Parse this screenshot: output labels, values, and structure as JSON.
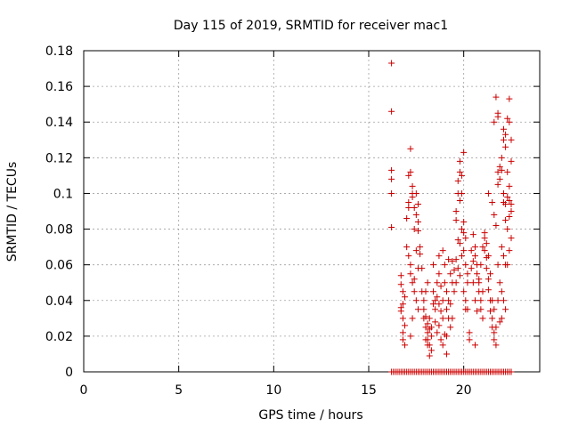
{
  "chart_data": {
    "type": "scatter",
    "title": "Day 115 of 2019, SRMTID for receiver mac1",
    "xlabel": "GPS time / hours",
    "ylabel": "SRMTID / TECUs",
    "xlim": [
      0,
      24
    ],
    "ylim": [
      0,
      0.18
    ],
    "grid": true,
    "marker": "+",
    "colors": {
      "points": "#cc0000",
      "grid": "#a0a0a0",
      "axis": "#000000"
    },
    "x_ticks": [
      {
        "value": 0,
        "label": "0"
      },
      {
        "value": 5,
        "label": "5"
      },
      {
        "value": 10,
        "label": "10"
      },
      {
        "value": 15,
        "label": "15"
      },
      {
        "value": 20,
        "label": "20"
      }
    ],
    "y_ticks": [
      {
        "value": 0,
        "label": "0"
      },
      {
        "value": 0.02,
        "label": "0.02"
      },
      {
        "value": 0.04,
        "label": "0.04"
      },
      {
        "value": 0.06,
        "label": "0.06"
      },
      {
        "value": 0.08,
        "label": "0.08"
      },
      {
        "value": 0.1,
        "label": "0.1"
      },
      {
        "value": 0.12,
        "label": "0.12"
      },
      {
        "value": 0.14,
        "label": "0.14"
      },
      {
        "value": 0.16,
        "label": "0.16"
      },
      {
        "value": 0.18,
        "label": "0.18"
      }
    ],
    "series": [
      {
        "values": [
          [
            16.2,
            0.173
          ],
          [
            16.2,
            0.146
          ],
          [
            16.2,
            0.113
          ],
          [
            16.2,
            0.108
          ],
          [
            16.2,
            0.1
          ],
          [
            16.2,
            0.081
          ],
          [
            16.7,
            0.054
          ],
          [
            16.7,
            0.049
          ],
          [
            16.8,
            0.045
          ],
          [
            16.8,
            0.038
          ],
          [
            16.7,
            0.034
          ],
          [
            16.8,
            0.03
          ],
          [
            16.8,
            0.022
          ],
          [
            16.8,
            0.018
          ],
          [
            16.9,
            0.015
          ],
          [
            16.9,
            0.026
          ],
          [
            16.9,
            0.042
          ],
          [
            16.7,
            0.036
          ],
          [
            17.0,
            0.07
          ],
          [
            17.0,
            0.086
          ],
          [
            17.1,
            0.095
          ],
          [
            17.1,
            0.11
          ],
          [
            17.2,
            0.112
          ],
          [
            17.2,
            0.125
          ],
          [
            17.3,
            0.1
          ],
          [
            17.3,
            0.098
          ],
          [
            17.4,
            0.092
          ],
          [
            17.4,
            0.08
          ],
          [
            17.5,
            0.088
          ],
          [
            17.6,
            0.084
          ],
          [
            17.6,
            0.079
          ],
          [
            17.1,
            0.092
          ],
          [
            17.3,
            0.104
          ],
          [
            17.5,
            0.1
          ],
          [
            17.6,
            0.094
          ],
          [
            17.1,
            0.065
          ],
          [
            17.2,
            0.06
          ],
          [
            17.2,
            0.055
          ],
          [
            17.3,
            0.05
          ],
          [
            17.4,
            0.045
          ],
          [
            17.5,
            0.04
          ],
          [
            17.6,
            0.035
          ],
          [
            17.2,
            0.02
          ],
          [
            17.3,
            0.03
          ],
          [
            17.4,
            0.052
          ],
          [
            17.6,
            0.058
          ],
          [
            17.5,
            0.068
          ],
          [
            17.7,
            0.066
          ],
          [
            17.7,
            0.07
          ],
          [
            17.8,
            0.058
          ],
          [
            17.8,
            0.045
          ],
          [
            17.9,
            0.04
          ],
          [
            17.9,
            0.035
          ],
          [
            18.0,
            0.031
          ],
          [
            18.0,
            0.025
          ],
          [
            18.1,
            0.022
          ],
          [
            18.1,
            0.018
          ],
          [
            18.2,
            0.015
          ],
          [
            18.2,
            0.024
          ],
          [
            18.3,
            0.012
          ],
          [
            18.3,
            0.025
          ],
          [
            18.1,
            0.015
          ],
          [
            18.2,
            0.009
          ],
          [
            18.0,
            0.018
          ],
          [
            18.1,
            0.027
          ],
          [
            18.3,
            0.02
          ],
          [
            18.2,
            0.03
          ],
          [
            17.9,
            0.03
          ],
          [
            18.0,
            0.045
          ],
          [
            18.1,
            0.05
          ],
          [
            18.4,
            0.06
          ],
          [
            18.4,
            0.045
          ],
          [
            18.5,
            0.04
          ],
          [
            18.5,
            0.035
          ],
          [
            18.6,
            0.05
          ],
          [
            18.6,
            0.042
          ],
          [
            18.7,
            0.038
          ],
          [
            18.7,
            0.055
          ],
          [
            18.8,
            0.048
          ],
          [
            18.8,
            0.034
          ],
          [
            18.9,
            0.04
          ],
          [
            18.9,
            0.03
          ],
          [
            18.5,
            0.028
          ],
          [
            18.6,
            0.022
          ],
          [
            18.7,
            0.026
          ],
          [
            18.8,
            0.018
          ],
          [
            18.9,
            0.015
          ],
          [
            18.7,
            0.065
          ],
          [
            18.9,
            0.068
          ],
          [
            18.4,
            0.038
          ],
          [
            19.0,
            0.06
          ],
          [
            19.0,
            0.05
          ],
          [
            19.1,
            0.045
          ],
          [
            19.1,
            0.035
          ],
          [
            19.2,
            0.04
          ],
          [
            19.2,
            0.03
          ],
          [
            19.3,
            0.025
          ],
          [
            19.0,
            0.021
          ],
          [
            19.1,
            0.02
          ],
          [
            19.2,
            0.063
          ],
          [
            19.3,
            0.055
          ],
          [
            19.4,
            0.062
          ],
          [
            19.4,
            0.05
          ],
          [
            19.5,
            0.057
          ],
          [
            19.5,
            0.045
          ],
          [
            19.3,
            0.038
          ],
          [
            19.1,
            0.01
          ],
          [
            19.4,
            0.03
          ],
          [
            19.6,
            0.09
          ],
          [
            19.6,
            0.085
          ],
          [
            19.7,
            0.1
          ],
          [
            19.7,
            0.107
          ],
          [
            19.8,
            0.112
          ],
          [
            19.8,
            0.118
          ],
          [
            19.9,
            0.11
          ],
          [
            20.0,
            0.123
          ],
          [
            19.7,
            0.074
          ],
          [
            19.8,
            0.072
          ],
          [
            19.9,
            0.08
          ],
          [
            20.0,
            0.084
          ],
          [
            20.0,
            0.078
          ],
          [
            20.1,
            0.075
          ],
          [
            19.6,
            0.063
          ],
          [
            19.7,
            0.058
          ],
          [
            19.8,
            0.054
          ],
          [
            19.6,
            0.05
          ],
          [
            19.9,
            0.065
          ],
          [
            20.0,
            0.068
          ],
          [
            19.8,
            0.096
          ],
          [
            19.9,
            0.1
          ],
          [
            20.1,
            0.035
          ],
          [
            20.1,
            0.04
          ],
          [
            20.2,
            0.035
          ],
          [
            20.3,
            0.022
          ],
          [
            20.3,
            0.018
          ],
          [
            20.2,
            0.05
          ],
          [
            20.1,
            0.06
          ],
          [
            20.2,
            0.055
          ],
          [
            20.0,
            0.045
          ],
          [
            20.5,
            0.077
          ],
          [
            20.6,
            0.07
          ],
          [
            20.6,
            0.065
          ],
          [
            20.7,
            0.06
          ],
          [
            20.7,
            0.055
          ],
          [
            20.8,
            0.05
          ],
          [
            20.8,
            0.045
          ],
          [
            20.9,
            0.04
          ],
          [
            20.9,
            0.035
          ],
          [
            21.0,
            0.03
          ],
          [
            20.6,
            0.04
          ],
          [
            20.7,
            0.034
          ],
          [
            20.8,
            0.052
          ],
          [
            20.9,
            0.06
          ],
          [
            21.0,
            0.07
          ],
          [
            21.0,
            0.045
          ],
          [
            20.5,
            0.05
          ],
          [
            20.4,
            0.058
          ],
          [
            20.5,
            0.062
          ],
          [
            20.4,
            0.068
          ],
          [
            20.6,
            0.015
          ],
          [
            21.1,
            0.075
          ],
          [
            21.1,
            0.068
          ],
          [
            21.2,
            0.064
          ],
          [
            21.2,
            0.058
          ],
          [
            21.3,
            0.052
          ],
          [
            21.3,
            0.046
          ],
          [
            21.4,
            0.04
          ],
          [
            21.4,
            0.034
          ],
          [
            21.5,
            0.03
          ],
          [
            21.5,
            0.025
          ],
          [
            21.6,
            0.022
          ],
          [
            21.6,
            0.018
          ],
          [
            21.7,
            0.015
          ],
          [
            21.7,
            0.025
          ],
          [
            21.6,
            0.035
          ],
          [
            21.5,
            0.04
          ],
          [
            21.4,
            0.055
          ],
          [
            21.3,
            0.065
          ],
          [
            21.2,
            0.072
          ],
          [
            21.1,
            0.078
          ],
          [
            21.3,
            0.1
          ],
          [
            21.5,
            0.095
          ],
          [
            21.6,
            0.088
          ],
          [
            21.7,
            0.082
          ],
          [
            21.8,
            0.105
          ],
          [
            21.8,
            0.112
          ],
          [
            21.9,
            0.115
          ],
          [
            21.9,
            0.108
          ],
          [
            22.0,
            0.12
          ],
          [
            22.0,
            0.113
          ],
          [
            22.1,
            0.1
          ],
          [
            22.1,
            0.095
          ],
          [
            22.2,
            0.094
          ],
          [
            22.2,
            0.085
          ],
          [
            22.0,
            0.07
          ],
          [
            22.1,
            0.065
          ],
          [
            22.2,
            0.06
          ],
          [
            21.8,
            0.06
          ],
          [
            21.9,
            0.05
          ],
          [
            22.0,
            0.045
          ],
          [
            22.1,
            0.04
          ],
          [
            22.2,
            0.035
          ],
          [
            22.0,
            0.03
          ],
          [
            21.9,
            0.028
          ],
          [
            21.8,
            0.04
          ],
          [
            21.7,
            0.154
          ],
          [
            21.8,
            0.145
          ],
          [
            21.8,
            0.143
          ],
          [
            21.6,
            0.14
          ],
          [
            22.1,
            0.136
          ],
          [
            22.1,
            0.13
          ],
          [
            22.2,
            0.133
          ],
          [
            22.2,
            0.126
          ],
          [
            22.3,
            0.142
          ],
          [
            22.4,
            0.153
          ],
          [
            22.4,
            0.14
          ],
          [
            22.5,
            0.13
          ],
          [
            22.5,
            0.118
          ],
          [
            22.3,
            0.112
          ],
          [
            22.4,
            0.104
          ],
          [
            22.3,
            0.098
          ],
          [
            22.5,
            0.09
          ],
          [
            22.4,
            0.087
          ],
          [
            22.3,
            0.08
          ],
          [
            22.5,
            0.075
          ],
          [
            22.4,
            0.068
          ],
          [
            22.3,
            0.06
          ],
          [
            22.5,
            0.094
          ],
          [
            22.4,
            0.096
          ]
        ]
      },
      {
        "values": [
          [
            16.2,
            0
          ],
          [
            16.3,
            0
          ],
          [
            16.4,
            0
          ],
          [
            16.5,
            0
          ],
          [
            16.6,
            0
          ],
          [
            16.7,
            0
          ],
          [
            16.8,
            0
          ],
          [
            16.9,
            0
          ],
          [
            17.0,
            0
          ],
          [
            17.1,
            0
          ],
          [
            17.2,
            0
          ],
          [
            17.3,
            0
          ],
          [
            17.4,
            0
          ],
          [
            17.5,
            0
          ],
          [
            17.6,
            0
          ],
          [
            17.7,
            0
          ],
          [
            17.8,
            0
          ],
          [
            17.9,
            0
          ],
          [
            18.0,
            0
          ],
          [
            18.1,
            0
          ],
          [
            18.2,
            0
          ],
          [
            18.3,
            0
          ],
          [
            18.4,
            0
          ],
          [
            18.5,
            0
          ],
          [
            18.6,
            0
          ],
          [
            18.7,
            0
          ],
          [
            18.8,
            0
          ],
          [
            18.9,
            0
          ],
          [
            19.0,
            0
          ],
          [
            19.1,
            0
          ],
          [
            19.2,
            0
          ],
          [
            19.3,
            0
          ],
          [
            19.4,
            0
          ],
          [
            19.5,
            0
          ],
          [
            19.6,
            0
          ],
          [
            19.7,
            0
          ],
          [
            19.8,
            0
          ],
          [
            19.9,
            0
          ],
          [
            20.0,
            0
          ],
          [
            20.1,
            0
          ],
          [
            20.2,
            0
          ],
          [
            20.3,
            0
          ],
          [
            20.4,
            0
          ],
          [
            20.5,
            0
          ],
          [
            20.6,
            0
          ],
          [
            20.7,
            0
          ],
          [
            20.8,
            0
          ],
          [
            20.9,
            0
          ],
          [
            21.0,
            0
          ],
          [
            21.1,
            0
          ],
          [
            21.2,
            0
          ],
          [
            21.3,
            0
          ],
          [
            21.4,
            0
          ],
          [
            21.5,
            0
          ],
          [
            21.6,
            0
          ],
          [
            21.7,
            0
          ],
          [
            21.8,
            0
          ],
          [
            21.9,
            0
          ],
          [
            22.0,
            0
          ],
          [
            22.1,
            0
          ],
          [
            22.2,
            0
          ],
          [
            22.3,
            0
          ],
          [
            22.4,
            0
          ],
          [
            22.5,
            0
          ]
        ]
      }
    ]
  }
}
